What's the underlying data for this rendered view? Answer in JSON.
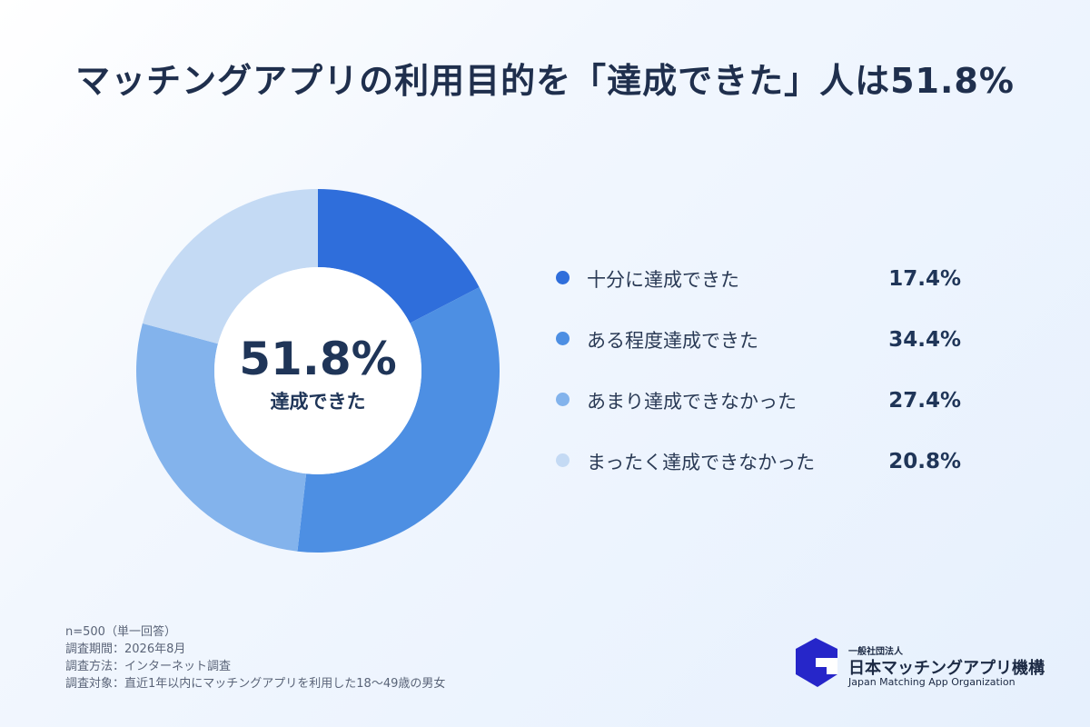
{
  "title": "マッチングアプリの利用目的を「達成できた」人は51.8%",
  "center": {
    "value": "51.8%",
    "label": "達成できた"
  },
  "chart_data": {
    "type": "pie",
    "donut": true,
    "title": "マッチングアプリの利用目的を「達成できた」人は51.8%",
    "categories": [
      "十分に達成できた",
      "ある程度達成できた",
      "あまり達成できなかった",
      "まったく達成できなかった"
    ],
    "values": [
      17.4,
      34.4,
      27.4,
      20.8
    ],
    "value_labels": [
      "17.4%",
      "34.4%",
      "27.4%",
      "20.8%"
    ],
    "colors": [
      "#2f6edb",
      "#4d8fe3",
      "#83b3ec",
      "#c4daf4"
    ],
    "legend_position": "right"
  },
  "notes": [
    "n=500（単一回答）",
    "調査期間：2026年8月",
    "調査方法：インターネット調査",
    "調査対象：直近1年以内にマッチングアプリを利用した18〜49歳の男女"
  ],
  "logo": {
    "sub": "一般社団法人",
    "name": "日本マッチングアプリ機構",
    "en": "Japan Matching App Organization",
    "icon": "organization-logo-icon",
    "color": "#2626c9"
  }
}
